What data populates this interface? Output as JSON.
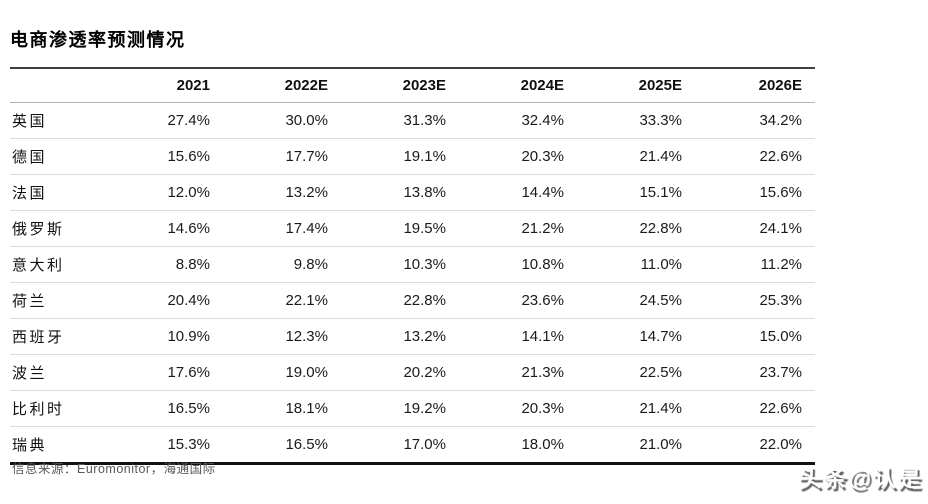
{
  "page": {
    "title": "电商渗透率预测情况",
    "source": "信息来源：Euromonitor，海通国际",
    "watermark": "头条@认是"
  },
  "chart_data": {
    "type": "table",
    "title": "电商渗透率预测情况",
    "columns": [
      "",
      "2021",
      "2022E",
      "2023E",
      "2024E",
      "2025E",
      "2026E"
    ],
    "rows": [
      {
        "country": "英国",
        "values": [
          "27.4%",
          "30.0%",
          "31.3%",
          "32.4%",
          "33.3%",
          "34.2%"
        ]
      },
      {
        "country": "德国",
        "values": [
          "15.6%",
          "17.7%",
          "19.1%",
          "20.3%",
          "21.4%",
          "22.6%"
        ]
      },
      {
        "country": "法国",
        "values": [
          "12.0%",
          "13.2%",
          "13.8%",
          "14.4%",
          "15.1%",
          "15.6%"
        ]
      },
      {
        "country": "俄罗斯",
        "values": [
          "14.6%",
          "17.4%",
          "19.5%",
          "21.2%",
          "22.8%",
          "24.1%"
        ]
      },
      {
        "country": "意大利",
        "values": [
          "8.8%",
          "9.8%",
          "10.3%",
          "10.8%",
          "11.0%",
          "11.2%"
        ]
      },
      {
        "country": "荷兰",
        "values": [
          "20.4%",
          "22.1%",
          "22.8%",
          "23.6%",
          "24.5%",
          "25.3%"
        ]
      },
      {
        "country": "西班牙",
        "values": [
          "10.9%",
          "12.3%",
          "13.2%",
          "14.1%",
          "14.7%",
          "15.0%"
        ]
      },
      {
        "country": "波兰",
        "values": [
          "17.6%",
          "19.0%",
          "20.2%",
          "21.3%",
          "22.5%",
          "23.7%"
        ]
      },
      {
        "country": "比利时",
        "values": [
          "16.5%",
          "18.1%",
          "19.2%",
          "20.3%",
          "21.4%",
          "22.6%"
        ]
      },
      {
        "country": "瑞典",
        "values": [
          "15.3%",
          "16.5%",
          "17.0%",
          "18.0%",
          "21.0%",
          "22.0%"
        ]
      }
    ]
  },
  "colors": {
    "background": "#ffffff",
    "title_text": "#000000",
    "body_text": "#1a1a1a",
    "source_text": "#595959",
    "top_border": "#404040",
    "header_divider": "#b3b3b3",
    "row_divider": "#dcdcdc",
    "bottom_border": "#111111"
  }
}
